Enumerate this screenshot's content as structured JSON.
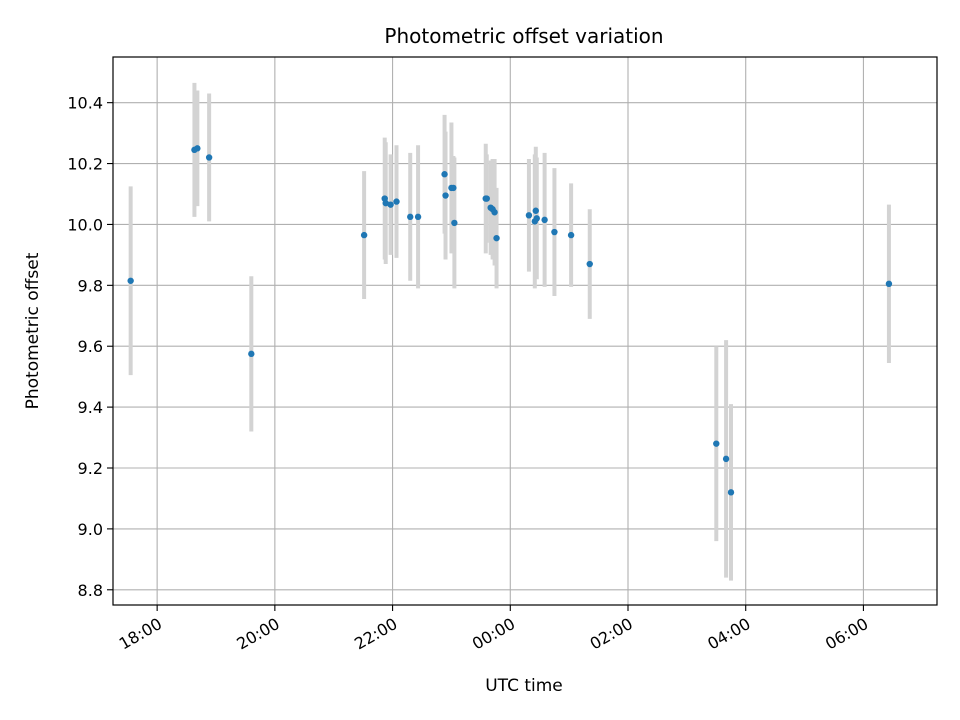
{
  "chart_data": {
    "type": "scatter",
    "title": "Photometric offset variation",
    "xlabel": "UTC time",
    "ylabel": "Photometric offset",
    "x_axis_kind": "time",
    "xlim": [
      "17:15",
      "07:15"
    ],
    "ylim": [
      8.75,
      10.55
    ],
    "xticks": [
      "18:00",
      "20:00",
      "22:00",
      "00:00",
      "02:00",
      "04:00",
      "06:00"
    ],
    "yticks": [
      8.8,
      9.0,
      9.2,
      9.4,
      9.6,
      9.8,
      10.0,
      10.2,
      10.4
    ],
    "ytick_labels": [
      "8.8",
      "9.0",
      "9.2",
      "9.4",
      "9.6",
      "9.8",
      "10.0",
      "10.2",
      "10.4"
    ],
    "grid": true,
    "marker_color": "#1f77b4",
    "errorbar_color": "#d3d3d3",
    "series": [
      {
        "points": [
          {
            "x": "17:33",
            "y": 9.815,
            "err": 0.31
          },
          {
            "x": "18:38",
            "y": 10.245,
            "err": 0.22
          },
          {
            "x": "18:41",
            "y": 10.25,
            "err": 0.19
          },
          {
            "x": "18:53",
            "y": 10.22,
            "err": 0.21
          },
          {
            "x": "19:36",
            "y": 9.575,
            "err": 0.255
          },
          {
            "x": "21:31",
            "y": 9.965,
            "err": 0.21
          },
          {
            "x": "21:52",
            "y": 10.085,
            "err": 0.2
          },
          {
            "x": "21:53",
            "y": 10.07,
            "err": 0.2
          },
          {
            "x": "21:58",
            "y": 10.065,
            "err": 0.165
          },
          {
            "x": "22:04",
            "y": 10.075,
            "err": 0.185
          },
          {
            "x": "22:18",
            "y": 10.025,
            "err": 0.21
          },
          {
            "x": "22:26",
            "y": 10.025,
            "err": 0.235
          },
          {
            "x": "22:53",
            "y": 10.165,
            "err": 0.195
          },
          {
            "x": "22:54",
            "y": 10.095,
            "err": 0.21
          },
          {
            "x": "23:00",
            "y": 10.12,
            "err": 0.215
          },
          {
            "x": "23:02",
            "y": 10.12,
            "err": 0.105
          },
          {
            "x": "23:03",
            "y": 10.005,
            "err": 0.215
          },
          {
            "x": "23:35",
            "y": 10.085,
            "err": 0.18
          },
          {
            "x": "23:36",
            "y": 10.085,
            "err": 0.145
          },
          {
            "x": "23:40",
            "y": 10.055,
            "err": 0.155
          },
          {
            "x": "23:42",
            "y": 10.05,
            "err": 0.165
          },
          {
            "x": "23:44",
            "y": 10.04,
            "err": 0.175
          },
          {
            "x": "23:46",
            "y": 9.955,
            "err": 0.165
          },
          {
            "x": "00:19",
            "y": 10.03,
            "err": 0.185
          },
          {
            "x": "00:25",
            "y": 10.01,
            "err": 0.22
          },
          {
            "x": "00:26",
            "y": 10.045,
            "err": 0.21
          },
          {
            "x": "00:27",
            "y": 10.02,
            "err": 0.2
          },
          {
            "x": "00:35",
            "y": 10.015,
            "err": 0.22
          },
          {
            "x": "00:45",
            "y": 9.975,
            "err": 0.21
          },
          {
            "x": "01:02",
            "y": 9.965,
            "err": 0.17
          },
          {
            "x": "01:21",
            "y": 9.87,
            "err": 0.18
          },
          {
            "x": "03:30",
            "y": 9.28,
            "err": 0.32
          },
          {
            "x": "03:40",
            "y": 9.23,
            "err": 0.39
          },
          {
            "x": "03:45",
            "y": 9.12,
            "err": 0.29
          },
          {
            "x": "06:26",
            "y": 9.805,
            "err": 0.26
          }
        ]
      }
    ]
  }
}
